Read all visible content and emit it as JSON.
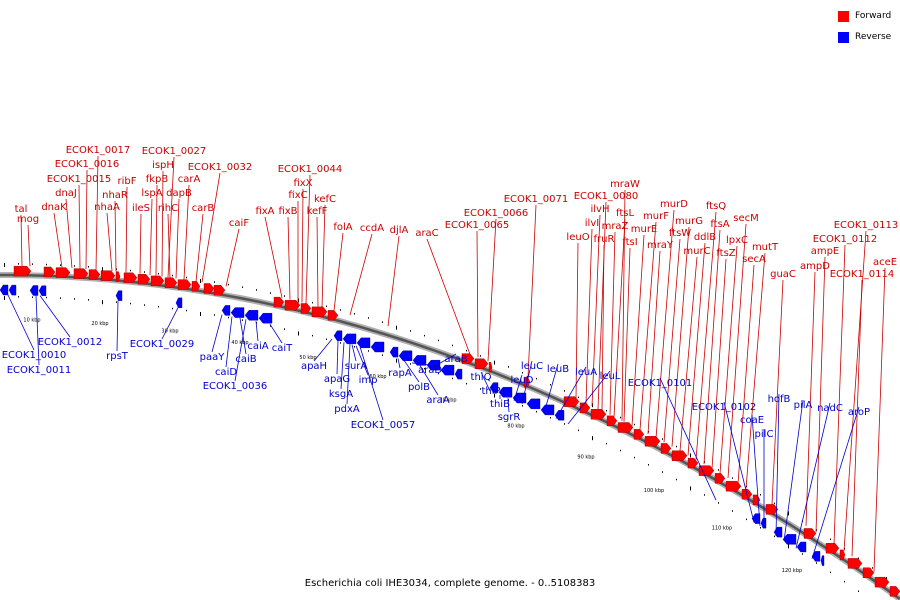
{
  "legend": {
    "forward_label": "Forward",
    "reverse_label": "Reverse",
    "forward_color": "#ff0000",
    "reverse_color": "#0000ff"
  },
  "caption": "Escherichia coli IHE3034, complete genome. - 0..5108383",
  "axis": {
    "labels": [
      "10 kbp",
      "20 kbp",
      "30 kbp",
      "40 kbp",
      "50 kbp",
      "60 kbp",
      "70 kbp",
      "80 kbp",
      "90 kbp",
      "100 kbp",
      "110 kbp",
      "120 kbp",
      "130 kbp"
    ]
  },
  "forward_genes": [
    "tal",
    "mog",
    "dnaK",
    "dnaJ",
    "ECOK1_0015",
    "ECOK1_0016",
    "ECOK1_0017",
    "nhaA",
    "nhaR",
    "ribF",
    "ileS",
    "lspA",
    "fkpB",
    "ispH",
    "ECOK1_0027",
    "rihC",
    "dapB",
    "carA",
    "carB",
    "ECOK1_0032",
    "caiF",
    "fixA",
    "fixB",
    "fixC",
    "fixX",
    "ECOK1_0044",
    "kefF",
    "kefC",
    "folA",
    "ccdA",
    "djlA",
    "araC",
    "ECOK1_0065",
    "ECOK1_0066",
    "ECOK1_0071",
    "leuO",
    "ilvI",
    "ilvH",
    "ECOK1_0080",
    "fruR",
    "mraZ",
    "ftsL",
    "mraW",
    "ftsI",
    "murE",
    "murF",
    "mraY",
    "murD",
    "ftsW",
    "murG",
    "murC",
    "ddlB",
    "ftsQ",
    "ftsA",
    "ftsZ",
    "lpxC",
    "secM",
    "secA",
    "mutT",
    "guaC",
    "ampD",
    "ampE",
    "ECOK1_0112",
    "ECOK1_0113",
    "ECOK1_0114",
    "aceE"
  ],
  "reverse_genes": [
    "ECOK1_0010",
    "ECOK1_0011",
    "ECOK1_0012",
    "rpsT",
    "ECOK1_0029",
    "paaY",
    "caiD",
    "caiB",
    "ECOK1_0036",
    "caiA",
    "caiT",
    "apaH",
    "apaG",
    "ksgA",
    "pdxA",
    "surA",
    "imp",
    "ECOK1_0057",
    "rapA",
    "polB",
    "araD",
    "araA",
    "araB",
    "thiQ",
    "thiP",
    "thiB",
    "sgrR",
    "leuD",
    "leuC",
    "leuB",
    "leuA",
    "leuL",
    "ECOK1_0101",
    "ECOK1_0102",
    "coaE",
    "pilC",
    "hofB",
    "pilA",
    "nadC",
    "aroP"
  ]
}
